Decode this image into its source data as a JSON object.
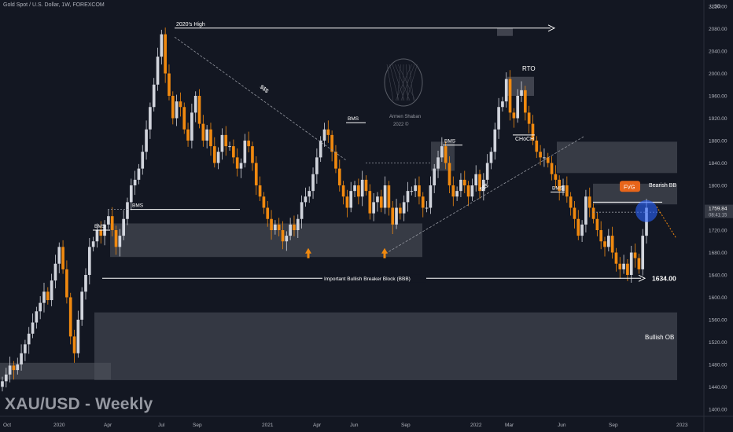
{
  "header": {
    "symbol_line": "Gold Spot / U.S. Dollar, 1W, FOREXCOM"
  },
  "footer": {
    "title": "XAU/USD - Weekly"
  },
  "colors": {
    "background": "#131722",
    "bull": "#d1d4dc",
    "bear": "#f0890f",
    "zone": "#50535e",
    "text": "#ffffff",
    "price_tag": "#363a45",
    "fvg": "#e8651a",
    "circle": "#2962ff"
  },
  "watermark": {
    "line1": "Armen Shaban",
    "line2": "2022 ©"
  },
  "chart_data": {
    "type": "candlestick",
    "currency": "USD",
    "ylim": [
      1385,
      2140
    ],
    "y_ticks": [
      1400,
      1440,
      1480,
      1520,
      1560,
      1600,
      1640,
      1680,
      1720,
      1760,
      1800,
      1840,
      1880,
      1920,
      1960,
      2000,
      2040,
      2080,
      2120
    ],
    "x_ticks": [
      "Oct",
      "2020",
      "Apr",
      "Jul",
      "Sep",
      "2021",
      "Apr",
      "Jun",
      "Sep",
      "2022",
      "Mar",
      "Jun",
      "Sep",
      "2023"
    ],
    "last_price": "1759.84",
    "countdown": "08:41:15",
    "annotations": [
      "2020's High",
      "RTO",
      "CHoCH",
      "$$$",
      "$$$",
      "BMS",
      "BMS",
      "BMS",
      "BMS",
      "BMS",
      "Bearish BB",
      "FVG",
      "Important Bullish Breaker Block (BBB)",
      "1634.00",
      "Bullish OB"
    ],
    "level_1634": 1634.0,
    "price_series": [
      1450,
      1462,
      1478,
      1470,
      1480,
      1500,
      1516,
      1535,
      1555,
      1575,
      1590,
      1610,
      1595,
      1630,
      1660,
      1690,
      1650,
      1600,
      1530,
      1500,
      1560,
      1610,
      1640,
      1690,
      1700,
      1720,
      1710,
      1730,
      1745,
      1720,
      1690,
      1710,
      1740,
      1770,
      1800,
      1810,
      1830,
      1860,
      1900,
      1940,
      1980,
      2030,
      2070,
      2000,
      1960,
      1920,
      1950,
      1940,
      1900,
      1880,
      1930,
      1960,
      1910,
      1880,
      1900,
      1870,
      1840,
      1860,
      1890,
      1870,
      1870,
      1850,
      1830,
      1840,
      1880,
      1870,
      1840,
      1800,
      1780,
      1760,
      1740,
      1720,
      1730,
      1720,
      1700,
      1710,
      1730,
      1720,
      1740,
      1770,
      1780,
      1790,
      1820,
      1850,
      1880,
      1900,
      1890,
      1860,
      1830,
      1800,
      1780,
      1760,
      1790,
      1800,
      1780,
      1810,
      1790,
      1750,
      1770,
      1780,
      1760,
      1800,
      1760,
      1730,
      1760,
      1750,
      1770,
      1790,
      1790,
      1800,
      1780,
      1760,
      1760,
      1800,
      1830,
      1850,
      1870,
      1840,
      1800,
      1780,
      1790,
      1810,
      1800,
      1780,
      1800,
      1820,
      1790,
      1810,
      1840,
      1860,
      1900,
      1940,
      1950,
      1990,
      1930,
      1920,
      1960,
      1970,
      1930,
      1910,
      1880,
      1860,
      1850,
      1850,
      1840,
      1820,
      1810,
      1790,
      1800,
      1780,
      1760,
      1740,
      1710,
      1730,
      1780,
      1760,
      1740,
      1720,
      1700,
      1690,
      1710,
      1680,
      1660,
      1650,
      1660,
      1640,
      1680,
      1670,
      1650,
      1710,
      1760
    ]
  }
}
